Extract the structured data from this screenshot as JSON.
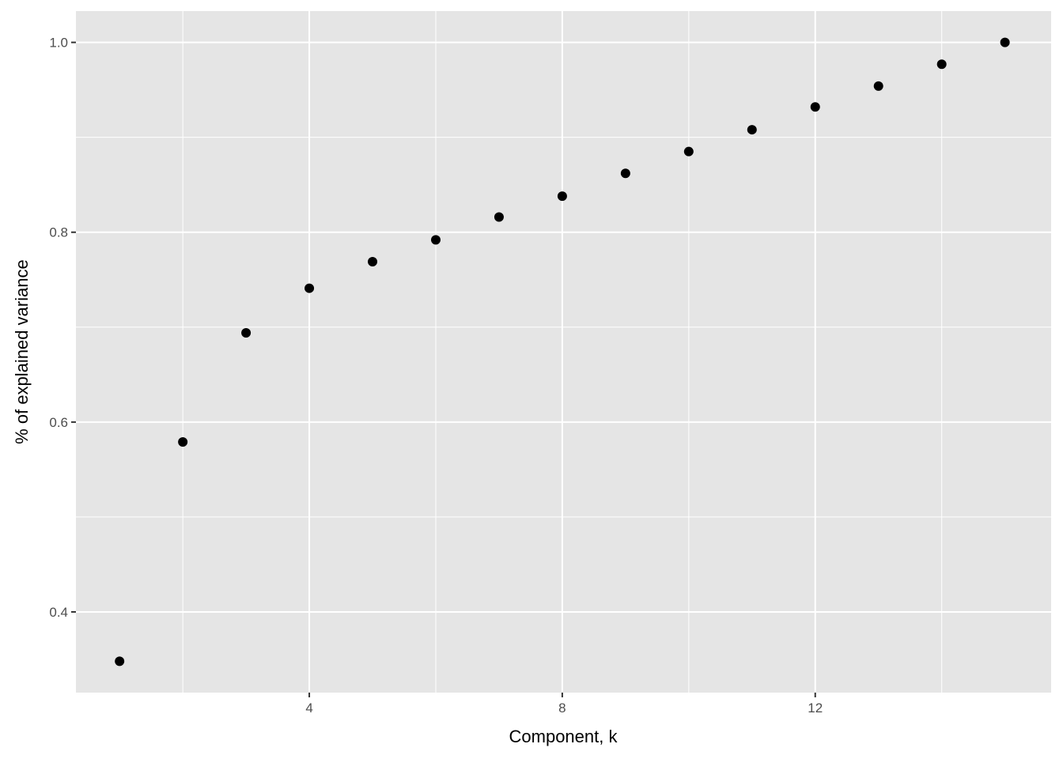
{
  "chart_data": {
    "type": "scatter",
    "title": "",
    "xlabel": "Component, k",
    "ylabel": "% of explained variance",
    "x": [
      1,
      2,
      3,
      4,
      5,
      6,
      7,
      8,
      9,
      10,
      11,
      12,
      13,
      14,
      15
    ],
    "y": [
      0.348,
      0.579,
      0.694,
      0.741,
      0.769,
      0.792,
      0.816,
      0.838,
      0.862,
      0.885,
      0.908,
      0.932,
      0.954,
      0.977,
      1.0
    ],
    "xlim": [
      0.31,
      15.73
    ],
    "ylim": [
      0.315,
      1.033
    ],
    "x_ticks": [
      4,
      8,
      12
    ],
    "x_tick_labels": [
      "4",
      "8",
      "12"
    ],
    "y_ticks": [
      0.4,
      0.6,
      0.8,
      1.0
    ],
    "y_tick_labels": [
      "0.4",
      "0.6",
      "0.8",
      "1.0"
    ],
    "grid": true,
    "panel_background": "#e5e5e5",
    "grid_color": "#ffffff",
    "point_color": "#000000"
  }
}
